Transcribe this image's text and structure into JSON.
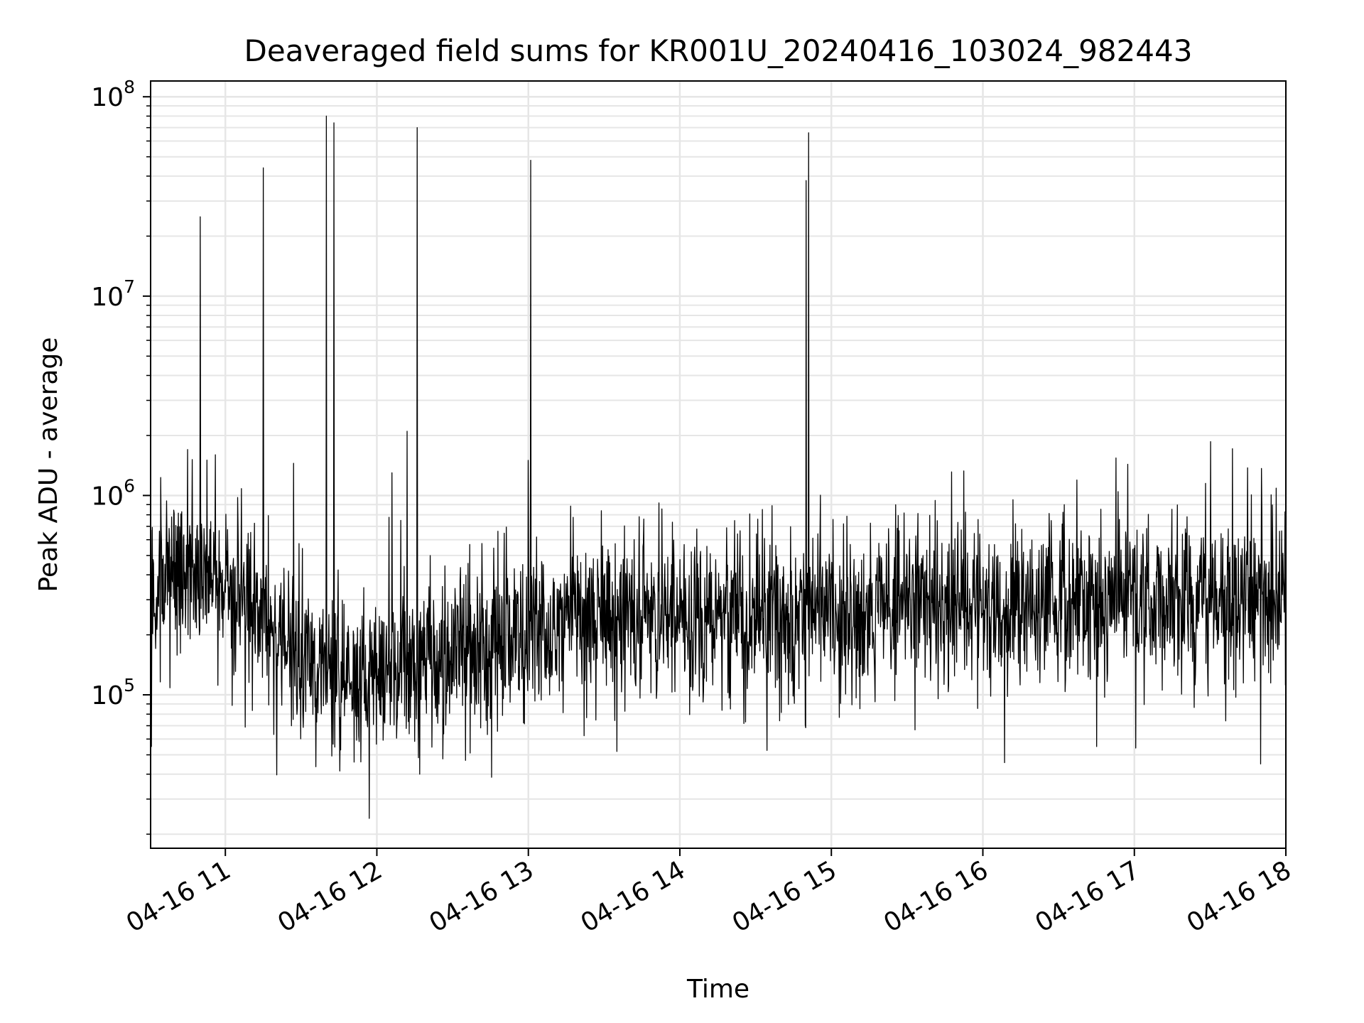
{
  "chart_data": {
    "type": "line",
    "title": "Deaveraged field sums for KR001U_20240416_103024_982443",
    "xlabel": "Time",
    "ylabel": "Peak ADU - average",
    "yscale": "log",
    "grid": true,
    "line_color": "#000000",
    "grid_color": "#e6e6e6",
    "xlim": [
      "2024-04-16 10:30:24",
      "2024-04-16 18:00:00"
    ],
    "ylim": [
      17000,
      120000000
    ],
    "x_ticks": [
      {
        "value": "2024-04-16 11:00",
        "label": "04-16 11"
      },
      {
        "value": "2024-04-16 12:00",
        "label": "04-16 12"
      },
      {
        "value": "2024-04-16 13:00",
        "label": "04-16 13"
      },
      {
        "value": "2024-04-16 14:00",
        "label": "04-16 14"
      },
      {
        "value": "2024-04-16 15:00",
        "label": "04-16 15"
      },
      {
        "value": "2024-04-16 16:00",
        "label": "04-16 16"
      },
      {
        "value": "2024-04-16 17:00",
        "label": "04-16 17"
      },
      {
        "value": "2024-04-16 18:00",
        "label": "04-16 18"
      }
    ],
    "y_ticks": [
      {
        "value": 100000,
        "base": "10",
        "exp": "5"
      },
      {
        "value": 1000000,
        "base": "10",
        "exp": "6"
      },
      {
        "value": 10000000,
        "base": "10",
        "exp": "7"
      },
      {
        "value": 100000000,
        "base": "10",
        "exp": "8"
      }
    ],
    "series": [
      {
        "baseline": [
          [
            "2024-04-16 10:30:24",
            300000
          ],
          [
            "2024-04-16 10:45",
            450000
          ],
          [
            "2024-04-16 11:00",
            380000
          ],
          [
            "2024-04-16 11:15",
            220000
          ],
          [
            "2024-04-16 11:30",
            160000
          ],
          [
            "2024-04-16 11:45",
            120000
          ],
          [
            "2024-04-16 12:00",
            130000
          ],
          [
            "2024-04-16 12:30",
            160000
          ],
          [
            "2024-04-16 13:00",
            200000
          ],
          [
            "2024-04-16 13:30",
            240000
          ],
          [
            "2024-04-16 14:00",
            250000
          ],
          [
            "2024-04-16 15:00",
            260000
          ],
          [
            "2024-04-16 16:00",
            290000
          ],
          [
            "2024-04-16 17:00",
            310000
          ],
          [
            "2024-04-16 18:00",
            300000
          ]
        ],
        "spikes": [
          [
            "2024-04-16 10:50",
            25000000
          ],
          [
            "2024-04-16 11:15",
            44000000
          ],
          [
            "2024-04-16 11:40",
            80000000
          ],
          [
            "2024-04-16 11:43",
            74000000
          ],
          [
            "2024-04-16 12:12",
            2100000
          ],
          [
            "2024-04-16 12:16",
            70000000
          ],
          [
            "2024-04-16 13:00",
            1500000
          ],
          [
            "2024-04-16 13:01",
            48000000
          ],
          [
            "2024-04-16 14:50",
            38000000
          ],
          [
            "2024-04-16 14:51",
            66000000
          ],
          [
            "2024-04-16 10:45",
            1700000
          ],
          [
            "2024-04-16 11:27",
            1450000
          ],
          [
            "2024-04-16 12:06",
            1300000
          ],
          [
            "2024-04-16 10:56",
            1600000
          ]
        ],
        "dips": [
          [
            "2024-04-16 11:57",
            24000
          ],
          [
            "2024-04-16 12:17",
            40000
          ],
          [
            "2024-04-16 11:51",
            46000
          ],
          [
            "2024-04-16 10:30:40",
            55000
          ],
          [
            "2024-04-16 13:35",
            52000
          ],
          [
            "2024-04-16 16:45",
            55000
          ],
          [
            "2024-04-16 17:50",
            45000
          ]
        ]
      }
    ]
  }
}
